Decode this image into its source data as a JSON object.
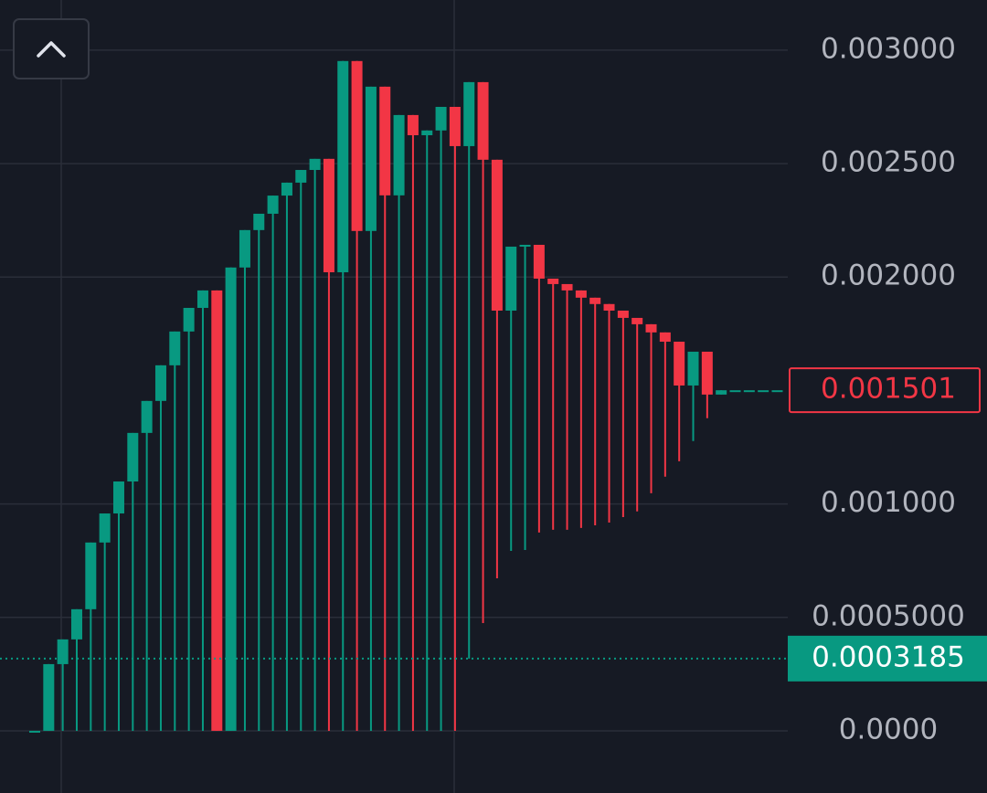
{
  "chart_data": {
    "type": "candlestick",
    "ylim": [
      -0.000274,
      0.003221
    ],
    "yticks": [
      {
        "value": 0,
        "label": "0.0000"
      },
      {
        "value": 0.0005,
        "label": "0.0005000"
      },
      {
        "value": 0.001,
        "label": "0.001000"
      },
      {
        "value": 0.002,
        "label": "0.002000"
      },
      {
        "value": 0.0025,
        "label": "0.002500"
      },
      {
        "value": 0.003,
        "label": "0.003000"
      }
    ],
    "grid": true,
    "up_color": "#089981",
    "down_color": "#f23645",
    "open": [
      0,
      0,
      0.000294,
      0.000403,
      0.000536,
      0.00083,
      0.000958,
      0.001099,
      0.001313,
      0.001454,
      0.001611,
      0.00176,
      0.001864,
      0.001941,
      0,
      0.002042,
      0.002207,
      0.002279,
      0.002359,
      0.002416,
      0.002472,
      0.002521,
      0.002021,
      0.002952,
      0.002203,
      0.002839,
      0.00236,
      0.002714,
      0.002625,
      0.002646,
      0.00275,
      0.002577,
      0.002859,
      0.002517,
      0.001852,
      0.002134,
      0.002142,
      0.001993,
      0.001969,
      0.001941,
      0.001909,
      0.001881,
      0.001852,
      0.00182,
      0.001792,
      0.001756,
      0.001715,
      0.001522,
      0.001671,
      0.001482,
      0.001501,
      0.001501,
      0.001501,
      0.001501
    ],
    "high": [
      0,
      0.000294,
      0.000403,
      0.000536,
      0.00083,
      0.000958,
      0.001099,
      0.001313,
      0.001454,
      0.001611,
      0.00176,
      0.001864,
      0.001941,
      0.001941,
      0.002042,
      0.002207,
      0.002279,
      0.002359,
      0.002416,
      0.002472,
      0.002521,
      0.002521,
      0.002952,
      0.002952,
      0.002839,
      0.002839,
      0.002714,
      0.002714,
      0.002646,
      0.00275,
      0.00275,
      0.002859,
      0.002859,
      0.002517,
      0.002134,
      0.002142,
      0.002142,
      0.001993,
      0.001969,
      0.001941,
      0.001909,
      0.001881,
      0.001852,
      0.00182,
      0.001792,
      0.001756,
      0.001715,
      0.001671,
      0.001671,
      0.001501,
      0.001501,
      0.001501,
      0.001501,
      0.001501
    ],
    "low": [
      0,
      0,
      0,
      0,
      0,
      0,
      0,
      0,
      0,
      0,
      0,
      0,
      0,
      0,
      0,
      0,
      0,
      0,
      0,
      0,
      0,
      0,
      0,
      0,
      0,
      0,
      0,
      0,
      0,
      0,
      0,
      0.0003185,
      0.000475,
      0.000672,
      0.000793,
      0.000797,
      0.000874,
      0.000886,
      0.000886,
      0.000894,
      0.000906,
      0.000918,
      0.000942,
      0.000967,
      0.001047,
      0.00112,
      0.001188,
      0.001277,
      0.001378,
      0.001482,
      0.001501,
      0.001501,
      0.001501,
      0.001501
    ],
    "close": [
      0,
      0.000294,
      0.000403,
      0.000536,
      0.00083,
      0.000958,
      0.001099,
      0.001313,
      0.001454,
      0.001611,
      0.00176,
      0.001864,
      0.001941,
      0,
      0.002042,
      0.002207,
      0.002279,
      0.002359,
      0.002416,
      0.002472,
      0.002521,
      0.002021,
      0.002952,
      0.002203,
      0.002839,
      0.00236,
      0.002714,
      0.002625,
      0.002646,
      0.00275,
      0.002577,
      0.002859,
      0.002517,
      0.001852,
      0.002134,
      0.002142,
      0.001993,
      0.001969,
      0.001941,
      0.001909,
      0.001881,
      0.001852,
      0.00182,
      0.001792,
      0.001756,
      0.001715,
      0.001522,
      0.001671,
      0.001482,
      0.001501,
      0.001501,
      0.001501,
      0.001501,
      0.001501
    ],
    "price_lines": [
      {
        "value": 0.001501,
        "color": "#f23645",
        "filled": false,
        "line": false
      },
      {
        "value": 0.0003185,
        "color": "#089981",
        "filled": true,
        "line": true
      }
    ]
  }
}
